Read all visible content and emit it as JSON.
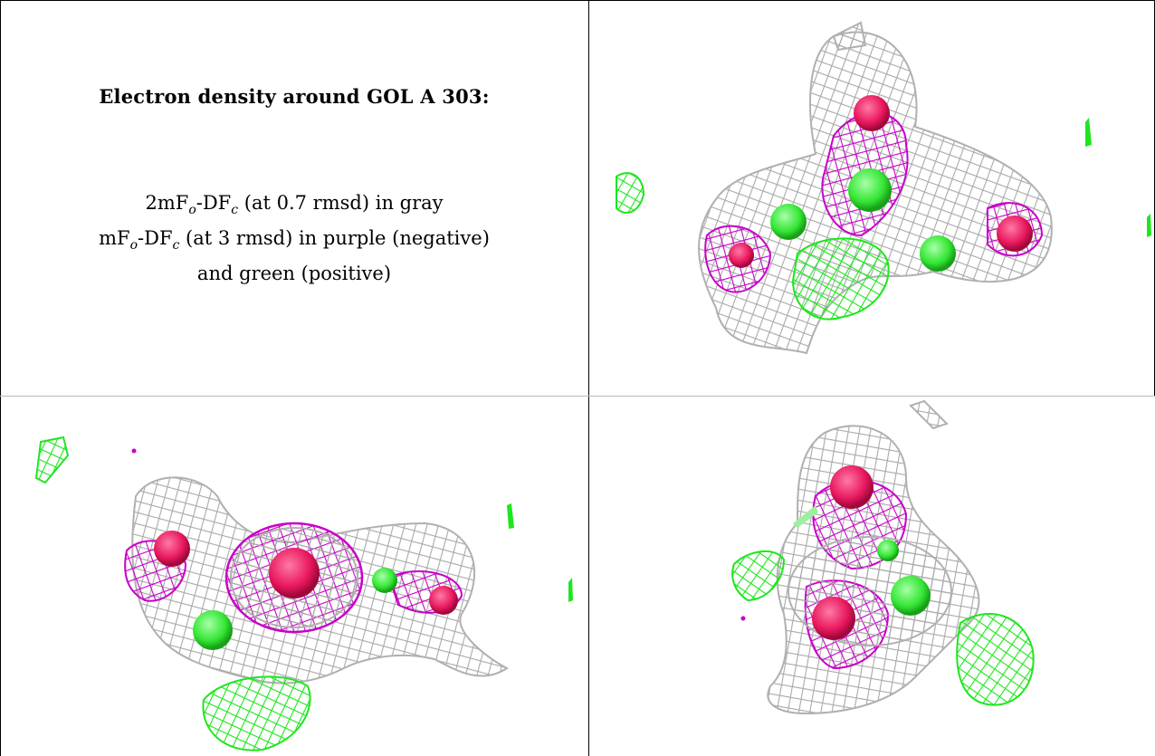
{
  "legend": {
    "title": "Electron density around GOL A 303:",
    "line1_prefix": "2mF",
    "line1_sub1": "o",
    "line1_mid": "-DF",
    "line1_sub2": "c",
    "line1_rest": " (at 0.7 rmsd) in gray",
    "line2_prefix": "mF",
    "line2_sub1": "o",
    "line2_mid": "-DF",
    "line2_sub2": "c",
    "line2_rest": " (at 3 rmsd) in purple (negative)",
    "line3": "and green (positive)"
  },
  "colors": {
    "map_2fofc": "#a9a9a9",
    "map_negative": "#c800c8",
    "map_positive": "#1ee61e",
    "atom_oxygen": "#e8175d",
    "atom_carbon": "#33e633"
  },
  "panels": [
    {
      "name": "view-top-right",
      "icon": "density-mesh-view"
    },
    {
      "name": "view-bottom-left",
      "icon": "density-mesh-view"
    },
    {
      "name": "view-bottom-right",
      "icon": "density-mesh-view"
    }
  ]
}
